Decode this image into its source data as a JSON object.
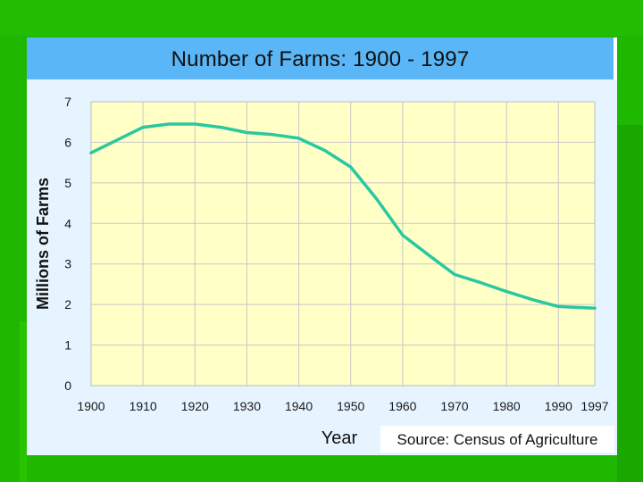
{
  "chart_data": {
    "type": "line",
    "title": "Number of Farms: 1900 - 1997",
    "xlabel": "Year",
    "ylabel": "Millions of Farms",
    "source": "Source: Census of Agriculture",
    "x_ticks": [
      "1900",
      "1910",
      "1920",
      "1930",
      "1940",
      "1950",
      "1960",
      "1970",
      "1980",
      "1990",
      "1997"
    ],
    "y_ticks": [
      "0",
      "1",
      "2",
      "3",
      "4",
      "5",
      "6",
      "7"
    ],
    "xlim": [
      1900,
      1997
    ],
    "ylim": [
      0,
      7
    ],
    "grid": true,
    "series": [
      {
        "x": [
          1900,
          1910,
          1915,
          1920,
          1925,
          1930,
          1935,
          1940,
          1945,
          1950,
          1955,
          1960,
          1965,
          1970,
          1975,
          1980,
          1985,
          1990,
          1997
        ],
        "values": [
          5.74,
          6.37,
          6.45,
          6.45,
          6.37,
          6.24,
          6.19,
          6.1,
          5.8,
          5.39,
          4.6,
          3.71,
          3.22,
          2.74,
          2.54,
          2.32,
          2.12,
          1.95,
          1.91
        ]
      }
    ]
  },
  "colors": {
    "background": "#1fb800",
    "panel": "#e6f4ff",
    "title_bar": "#5ab6f6",
    "plot_area": "#ffffc6",
    "gridline": "#c8c8c8",
    "line": "#2ac8a0"
  }
}
